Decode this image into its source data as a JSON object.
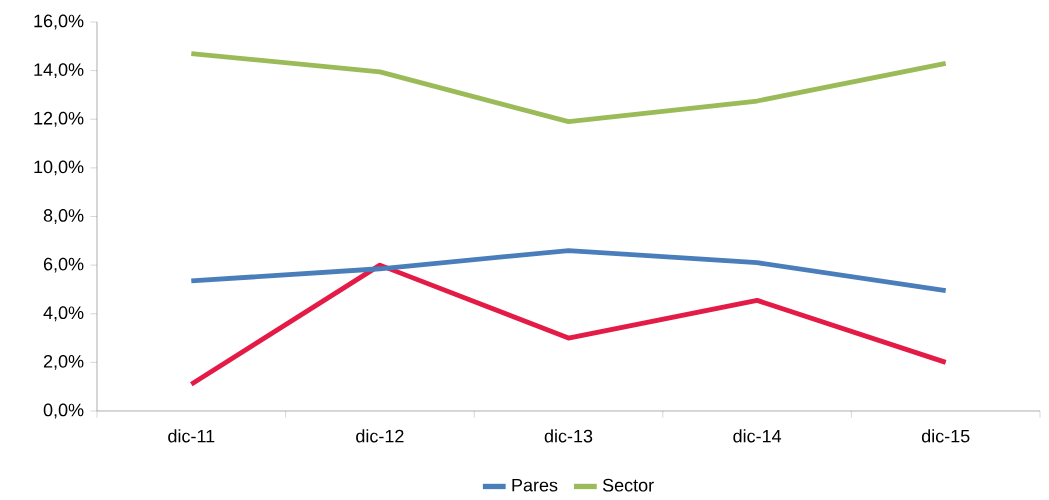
{
  "chart_data": {
    "type": "line",
    "categories": [
      "dic-11",
      "dic-12",
      "dic-13",
      "dic-14",
      "dic-15"
    ],
    "series": [
      {
        "color": "#e31b46",
        "values": [
          1.1,
          6.0,
          3.0,
          4.55,
          2.0
        ]
      },
      {
        "name": "Pares",
        "color": "#4a7ebb",
        "values": [
          5.35,
          5.85,
          6.6,
          6.1,
          4.95
        ]
      },
      {
        "name": "Sector",
        "color": "#9bbb59",
        "values": [
          14.7,
          13.95,
          11.9,
          12.75,
          14.3
        ]
      }
    ],
    "ylim": [
      0,
      16
    ],
    "yticks": [
      {
        "value": 0,
        "label": "0,0%"
      },
      {
        "value": 2,
        "label": "2,0%"
      },
      {
        "value": 4,
        "label": "4,0%"
      },
      {
        "value": 6,
        "label": "6,0%"
      },
      {
        "value": 8,
        "label": "8,0%"
      },
      {
        "value": 10,
        "label": "10,0%"
      },
      {
        "value": 12,
        "label": "12,0%"
      },
      {
        "value": 14,
        "label": "14,0%"
      },
      {
        "value": 16,
        "label": "16,0%"
      }
    ],
    "grid": false,
    "legend": "bottom",
    "marker": "none",
    "line_style": "solid"
  }
}
